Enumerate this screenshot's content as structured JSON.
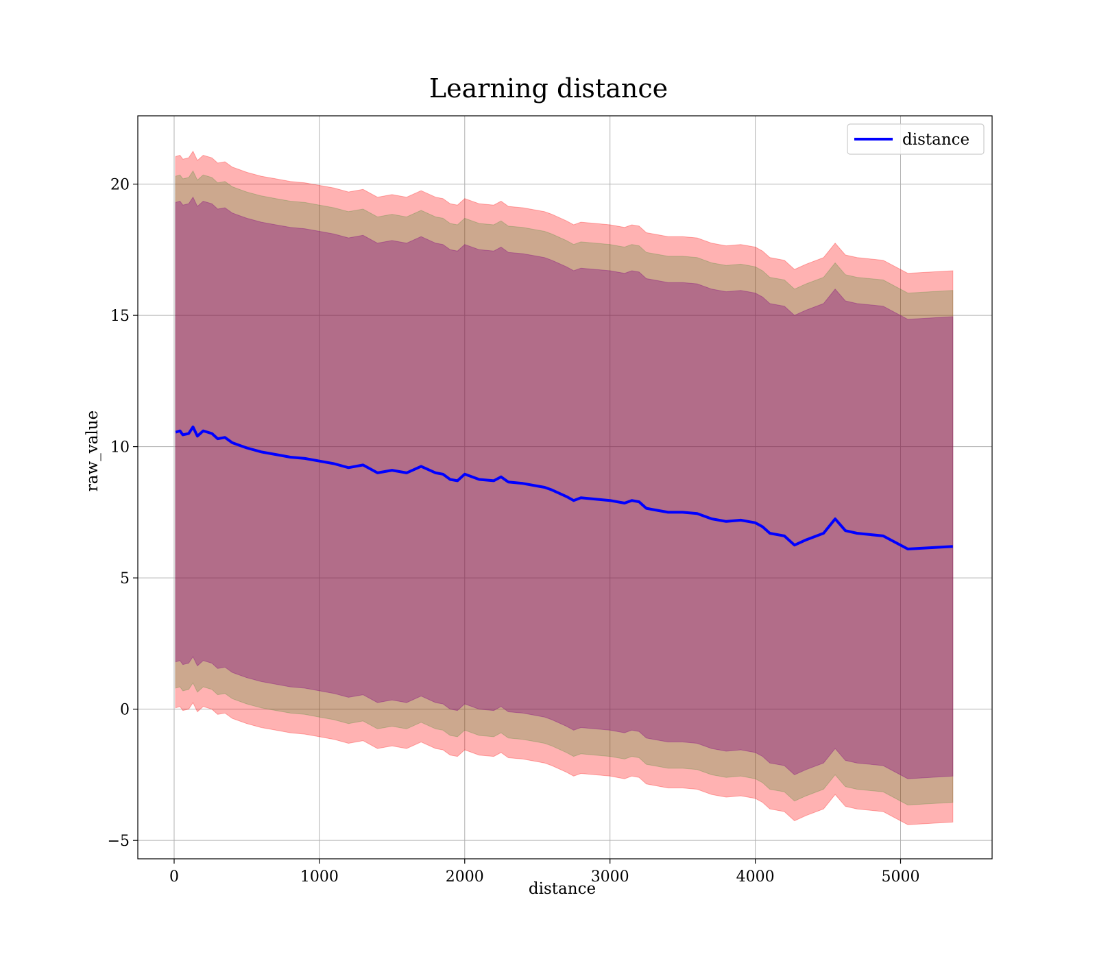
{
  "chart_data": {
    "type": "line",
    "title": "Learning distance",
    "xlabel": "distance",
    "ylabel": "raw_value",
    "xlim": [
      -250,
      5630
    ],
    "ylim": [
      -5.7,
      22.6
    ],
    "x_ticks": [
      0,
      1000,
      2000,
      3000,
      4000,
      5000
    ],
    "x_tick_labels": [
      "0",
      "1000",
      "2000",
      "3000",
      "4000",
      "5000"
    ],
    "y_ticks": [
      -5,
      0,
      5,
      10,
      15,
      20
    ],
    "y_tick_labels": [
      "−5",
      "0",
      "5",
      "10",
      "15",
      "20"
    ],
    "grid": true,
    "legend_position": "top-right",
    "series": [
      {
        "name": "distance",
        "color": "#0000ff",
        "x": [
          10,
          40,
          60,
          100,
          130,
          160,
          200,
          260,
          300,
          350,
          400,
          450,
          500,
          600,
          700,
          800,
          900,
          1000,
          1100,
          1200,
          1300,
          1400,
          1500,
          1600,
          1700,
          1800,
          1850,
          1900,
          1950,
          2000,
          2100,
          2200,
          2250,
          2300,
          2400,
          2500,
          2550,
          2600,
          2700,
          2750,
          2800,
          2900,
          3000,
          3100,
          3150,
          3200,
          3250,
          3300,
          3400,
          3500,
          3600,
          3700,
          3750,
          3800,
          3900,
          3950,
          4000,
          4050,
          4100,
          4200,
          4270,
          4350,
          4470,
          4550,
          4620,
          4700,
          4880,
          5050,
          5360
        ],
        "y": [
          10.55,
          10.6,
          10.45,
          10.5,
          10.75,
          10.4,
          10.6,
          10.5,
          10.3,
          10.35,
          10.15,
          10.05,
          9.95,
          9.8,
          9.7,
          9.6,
          9.55,
          9.45,
          9.35,
          9.2,
          9.3,
          9.0,
          9.1,
          9.0,
          9.25,
          9.0,
          8.95,
          8.75,
          8.7,
          8.95,
          8.75,
          8.7,
          8.85,
          8.65,
          8.6,
          8.5,
          8.45,
          8.35,
          8.1,
          7.95,
          8.05,
          8.0,
          7.95,
          7.85,
          7.95,
          7.9,
          7.65,
          7.6,
          7.5,
          7.5,
          7.45,
          7.25,
          7.2,
          7.15,
          7.2,
          7.15,
          7.1,
          6.95,
          6.7,
          6.6,
          6.25,
          6.45,
          6.7,
          7.25,
          6.8,
          6.7,
          6.6,
          6.1,
          6.2
        ]
      }
    ],
    "bands": [
      {
        "color": "#ff0000",
        "opacity": 0.3,
        "x": [
          10,
          40,
          60,
          100,
          130,
          160,
          200,
          260,
          300,
          350,
          400,
          450,
          500,
          600,
          700,
          800,
          900,
          1000,
          1100,
          1200,
          1300,
          1400,
          1500,
          1600,
          1700,
          1800,
          1850,
          1900,
          1950,
          2000,
          2100,
          2200,
          2250,
          2300,
          2400,
          2500,
          2550,
          2600,
          2700,
          2750,
          2800,
          2900,
          3000,
          3100,
          3150,
          3200,
          3250,
          3300,
          3400,
          3500,
          3600,
          3700,
          3750,
          3800,
          3900,
          3950,
          4000,
          4050,
          4100,
          4200,
          4270,
          4350,
          4470,
          4550,
          4620,
          4700,
          4880,
          5050,
          5360
        ],
        "upper": [
          21.05,
          21.1,
          20.95,
          21.0,
          21.25,
          20.9,
          21.1,
          21.0,
          20.8,
          20.85,
          20.65,
          20.55,
          20.45,
          20.3,
          20.2,
          20.1,
          20.05,
          19.95,
          19.85,
          19.7,
          19.8,
          19.5,
          19.6,
          19.5,
          19.75,
          19.5,
          19.45,
          19.25,
          19.2,
          19.45,
          19.25,
          19.2,
          19.35,
          19.15,
          19.1,
          19.0,
          18.95,
          18.85,
          18.6,
          18.45,
          18.55,
          18.5,
          18.45,
          18.35,
          18.45,
          18.4,
          18.15,
          18.1,
          18.0,
          18.0,
          17.95,
          17.75,
          17.7,
          17.65,
          17.7,
          17.65,
          17.6,
          17.45,
          17.2,
          17.1,
          16.75,
          16.95,
          17.2,
          17.75,
          17.3,
          17.2,
          17.1,
          16.6,
          16.7
        ],
        "lower": [
          0.05,
          0.1,
          -0.05,
          0.0,
          0.25,
          -0.1,
          0.1,
          0.0,
          -0.2,
          -0.15,
          -0.35,
          -0.45,
          -0.55,
          -0.7,
          -0.8,
          -0.9,
          -0.95,
          -1.05,
          -1.15,
          -1.3,
          -1.2,
          -1.5,
          -1.4,
          -1.5,
          -1.25,
          -1.5,
          -1.55,
          -1.75,
          -1.8,
          -1.55,
          -1.75,
          -1.8,
          -1.65,
          -1.85,
          -1.9,
          -2.0,
          -2.05,
          -2.15,
          -2.4,
          -2.55,
          -2.45,
          -2.5,
          -2.55,
          -2.65,
          -2.55,
          -2.6,
          -2.85,
          -2.9,
          -3.0,
          -3.0,
          -3.05,
          -3.25,
          -3.3,
          -3.35,
          -3.3,
          -3.35,
          -3.4,
          -3.55,
          -3.8,
          -3.9,
          -4.25,
          -4.05,
          -3.8,
          -3.25,
          -3.7,
          -3.8,
          -3.9,
          -4.4,
          -4.3
        ]
      },
      {
        "color": "#008000",
        "opacity": 0.2,
        "x": [
          10,
          40,
          60,
          100,
          130,
          160,
          200,
          260,
          300,
          350,
          400,
          450,
          500,
          600,
          700,
          800,
          900,
          1000,
          1100,
          1200,
          1300,
          1400,
          1500,
          1600,
          1700,
          1800,
          1850,
          1900,
          1950,
          2000,
          2100,
          2200,
          2250,
          2300,
          2400,
          2500,
          2550,
          2600,
          2700,
          2750,
          2800,
          2900,
          3000,
          3100,
          3150,
          3200,
          3250,
          3300,
          3400,
          3500,
          3600,
          3700,
          3750,
          3800,
          3900,
          3950,
          4000,
          4050,
          4100,
          4200,
          4270,
          4350,
          4470,
          4550,
          4620,
          4700,
          4880,
          5050,
          5360
        ],
        "upper": [
          20.3,
          20.35,
          20.2,
          20.25,
          20.5,
          20.15,
          20.35,
          20.25,
          20.05,
          20.1,
          19.9,
          19.8,
          19.7,
          19.55,
          19.45,
          19.35,
          19.3,
          19.2,
          19.1,
          18.95,
          19.05,
          18.75,
          18.85,
          18.75,
          19.0,
          18.75,
          18.7,
          18.5,
          18.45,
          18.7,
          18.5,
          18.45,
          18.6,
          18.4,
          18.35,
          18.25,
          18.2,
          18.1,
          17.85,
          17.7,
          17.8,
          17.75,
          17.7,
          17.6,
          17.7,
          17.65,
          17.4,
          17.35,
          17.25,
          17.25,
          17.2,
          17.0,
          16.95,
          16.9,
          16.95,
          16.9,
          16.85,
          16.7,
          16.45,
          16.35,
          16.0,
          16.2,
          16.45,
          17.0,
          16.55,
          16.45,
          16.35,
          15.85,
          15.95
        ],
        "lower": [
          0.8,
          0.85,
          0.7,
          0.75,
          1.0,
          0.65,
          0.85,
          0.75,
          0.55,
          0.6,
          0.4,
          0.3,
          0.2,
          0.05,
          -0.05,
          -0.15,
          -0.2,
          -0.3,
          -0.4,
          -0.55,
          -0.45,
          -0.75,
          -0.65,
          -0.75,
          -0.5,
          -0.75,
          -0.8,
          -1.0,
          -1.05,
          -0.8,
          -1.0,
          -1.05,
          -0.9,
          -1.1,
          -1.15,
          -1.25,
          -1.3,
          -1.4,
          -1.65,
          -1.8,
          -1.7,
          -1.75,
          -1.8,
          -1.9,
          -1.8,
          -1.85,
          -2.1,
          -2.15,
          -2.25,
          -2.25,
          -2.3,
          -2.5,
          -2.55,
          -2.6,
          -2.55,
          -2.6,
          -2.65,
          -2.8,
          -3.05,
          -3.15,
          -3.5,
          -3.3,
          -3.05,
          -2.5,
          -2.95,
          -3.05,
          -3.15,
          -3.65,
          -3.55
        ]
      },
      {
        "color": "#800080",
        "opacity": 0.35,
        "x": [
          10,
          40,
          60,
          100,
          130,
          160,
          200,
          260,
          300,
          350,
          400,
          450,
          500,
          600,
          700,
          800,
          900,
          1000,
          1100,
          1200,
          1300,
          1400,
          1500,
          1600,
          1700,
          1800,
          1850,
          1900,
          1950,
          2000,
          2100,
          2200,
          2250,
          2300,
          2400,
          2500,
          2550,
          2600,
          2700,
          2750,
          2800,
          2900,
          3000,
          3100,
          3150,
          3200,
          3250,
          3300,
          3400,
          3500,
          3600,
          3700,
          3750,
          3800,
          3900,
          3950,
          4000,
          4050,
          4100,
          4200,
          4270,
          4350,
          4470,
          4550,
          4620,
          4700,
          4880,
          5050,
          5360
        ],
        "upper": [
          19.3,
          19.35,
          19.2,
          19.25,
          19.5,
          19.15,
          19.35,
          19.25,
          19.05,
          19.1,
          18.9,
          18.8,
          18.7,
          18.55,
          18.45,
          18.35,
          18.3,
          18.2,
          18.1,
          17.95,
          18.05,
          17.75,
          17.85,
          17.75,
          18.0,
          17.75,
          17.7,
          17.5,
          17.45,
          17.7,
          17.5,
          17.45,
          17.6,
          17.4,
          17.35,
          17.25,
          17.2,
          17.1,
          16.85,
          16.7,
          16.8,
          16.75,
          16.7,
          16.6,
          16.7,
          16.65,
          16.4,
          16.35,
          16.25,
          16.25,
          16.2,
          16.0,
          15.95,
          15.9,
          15.95,
          15.9,
          15.85,
          15.7,
          15.45,
          15.35,
          15.0,
          15.2,
          15.45,
          16.0,
          15.55,
          15.45,
          15.35,
          14.85,
          14.95
        ],
        "lower": [
          1.8,
          1.85,
          1.7,
          1.75,
          2.0,
          1.65,
          1.85,
          1.75,
          1.55,
          1.6,
          1.4,
          1.3,
          1.2,
          1.05,
          0.95,
          0.85,
          0.8,
          0.7,
          0.6,
          0.45,
          0.55,
          0.25,
          0.35,
          0.25,
          0.5,
          0.25,
          0.2,
          0.0,
          -0.05,
          0.2,
          0.0,
          -0.05,
          0.1,
          -0.1,
          -0.15,
          -0.25,
          -0.3,
          -0.4,
          -0.65,
          -0.8,
          -0.7,
          -0.75,
          -0.8,
          -0.9,
          -0.8,
          -0.85,
          -1.1,
          -1.15,
          -1.25,
          -1.25,
          -1.3,
          -1.5,
          -1.55,
          -1.6,
          -1.55,
          -1.6,
          -1.65,
          -1.8,
          -2.05,
          -2.15,
          -2.5,
          -2.3,
          -2.05,
          -1.5,
          -1.95,
          -2.05,
          -2.15,
          -2.65,
          -2.55
        ]
      }
    ]
  }
}
